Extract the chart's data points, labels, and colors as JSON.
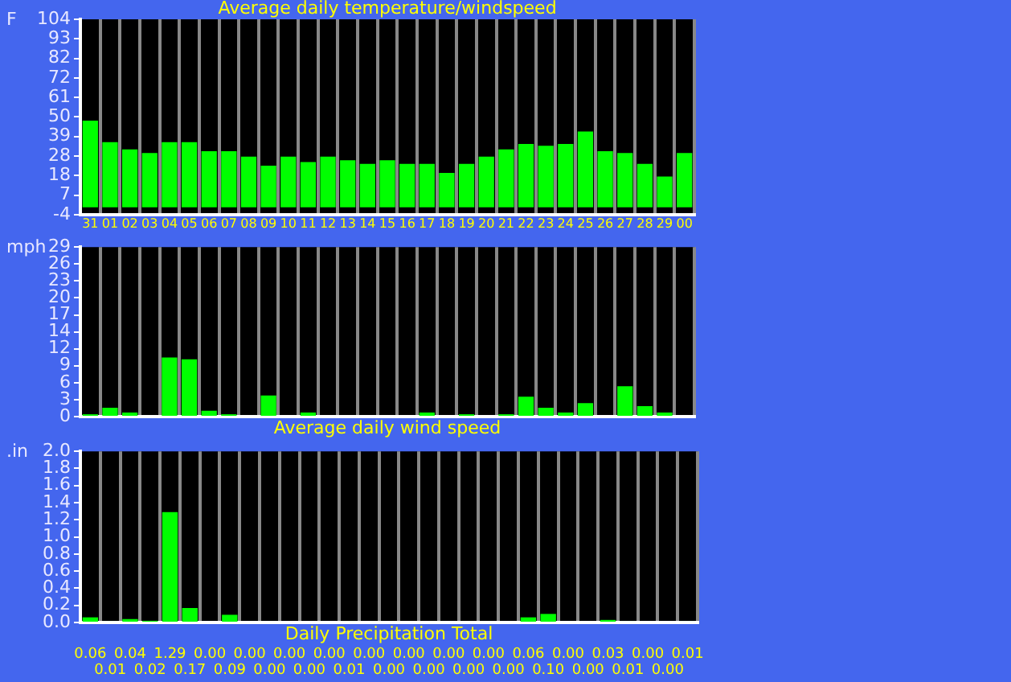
{
  "chart_data": [
    {
      "type": "bar",
      "title": "Average daily temperature/windspeed",
      "ylabel": "F",
      "categories": [
        "31",
        "01",
        "02",
        "03",
        "04",
        "05",
        "06",
        "07",
        "08",
        "09",
        "10",
        "11",
        "12",
        "13",
        "14",
        "15",
        "16",
        "17",
        "18",
        "19",
        "20",
        "21",
        "22",
        "23",
        "24",
        "25",
        "26",
        "27",
        "28",
        "29",
        "00"
      ],
      "values": [
        48,
        36,
        32,
        30,
        36,
        36,
        31,
        31,
        28,
        23,
        28,
        25,
        28,
        26,
        24,
        26,
        24,
        24,
        19,
        24,
        28,
        32,
        35,
        34,
        35,
        42,
        31,
        30,
        24,
        17,
        30
      ],
      "color": "#00ff00",
      "ylim": [
        -4,
        104
      ],
      "yticks": [
        -4,
        {
          "value": 6.8,
          "label": "7"
        },
        {
          "value": 17.6,
          "label": "18"
        },
        {
          "value": 28.4,
          "label": "28"
        },
        {
          "value": 39.2,
          "label": "39"
        },
        50,
        {
          "value": 60.8,
          "label": "61"
        },
        {
          "value": 71.6,
          "label": "72"
        },
        {
          "value": 82.4,
          "label": "82"
        },
        {
          "value": 93.2,
          "label": "93"
        },
        104
      ],
      "grid": "x",
      "legend": false
    },
    {
      "type": "bar",
      "xlabel": "Average daily wind speed",
      "ylabel": "mph",
      "categories": [
        "31",
        "01",
        "02",
        "03",
        "04",
        "05",
        "06",
        "07",
        "08",
        "09",
        "10",
        "11",
        "12",
        "13",
        "14",
        "15",
        "16",
        "17",
        "18",
        "19",
        "20",
        "21",
        "22",
        "23",
        "24",
        "25",
        "26",
        "27",
        "28",
        "29",
        "00"
      ],
      "values": [
        0.4,
        1.5,
        0.7,
        0,
        10.1,
        9.8,
        1.0,
        0.4,
        0,
        3.6,
        0,
        0.7,
        0,
        0,
        0,
        0,
        0,
        0.7,
        0,
        0.4,
        0,
        0.4,
        3.4,
        1.5,
        0.7,
        2.3,
        0,
        5.2,
        1.8,
        0.7,
        0
      ],
      "color": "#00ff00",
      "ylim": [
        0,
        29
      ],
      "yticks": [
        0,
        {
          "value": 2.9,
          "label": "3"
        },
        {
          "value": 5.8,
          "label": "6"
        },
        {
          "value": 8.7,
          "label": "9"
        },
        {
          "value": 11.6,
          "label": "12"
        },
        {
          "value": 14.5,
          "label": "14"
        },
        {
          "value": 17.4,
          "label": "17"
        },
        {
          "value": 20.3,
          "label": "20"
        },
        {
          "value": 23.2,
          "label": "23"
        },
        {
          "value": 26.1,
          "label": "26"
        },
        29
      ],
      "grid": "x",
      "legend": false,
      "tick_labels": "y"
    },
    {
      "type": "bar",
      "xlabel": "Daily Precipitation Total",
      "ylabel": ".in",
      "categories": [
        "31",
        "01",
        "02",
        "03",
        "04",
        "05",
        "06",
        "07",
        "08",
        "09",
        "10",
        "11",
        "12",
        "13",
        "14",
        "15",
        "16",
        "17",
        "18",
        "19",
        "20",
        "21",
        "22",
        "23",
        "24",
        "25",
        "26",
        "27",
        "28",
        "29",
        "00"
      ],
      "values": [
        0.06,
        0.01,
        0.04,
        0.02,
        1.29,
        0.17,
        0.0,
        0.09,
        0.0,
        0.0,
        0.0,
        0.0,
        0.0,
        0.01,
        0.0,
        0.0,
        0.0,
        0.0,
        0.0,
        0.0,
        0.0,
        0.0,
        0.06,
        0.1,
        0.0,
        0.0,
        0.03,
        0.01,
        0.0,
        0.0,
        0.01
      ],
      "value_labels": [
        "0.06",
        "0.01",
        "0.04",
        "0.02",
        "1.29",
        "0.17",
        "0.00",
        "0.09",
        "0.00",
        "0.00",
        "0.00",
        "0.00",
        "0.00",
        "0.01",
        "0.00",
        "0.00",
        "0.00",
        "0.00",
        "0.00",
        "0.00",
        "0.00",
        "0.00",
        "0.06",
        "0.10",
        "0.00",
        "0.00",
        "0.03",
        "0.01",
        "0.00",
        "0.00",
        "0.01"
      ],
      "color": "#00ff00",
      "ylim": [
        0,
        2
      ],
      "yticks": [
        {
          "value": 0,
          "label": "0.0"
        },
        {
          "value": 0.2,
          "label": "0.2"
        },
        {
          "value": 0.4,
          "label": "0.4"
        },
        {
          "value": 0.6,
          "label": "0.6"
        },
        {
          "value": 0.8,
          "label": "0.8"
        },
        {
          "value": 1,
          "label": "1.0"
        },
        {
          "value": 1.2,
          "label": "1.2"
        },
        {
          "value": 1.4,
          "label": "1.4"
        },
        {
          "value": 1.6,
          "label": "1.6"
        },
        {
          "value": 1.8,
          "label": "1.8"
        },
        {
          "value": 2,
          "label": "2.0"
        }
      ],
      "grid": "x",
      "legend": false,
      "tick_labels": "y"
    }
  ]
}
